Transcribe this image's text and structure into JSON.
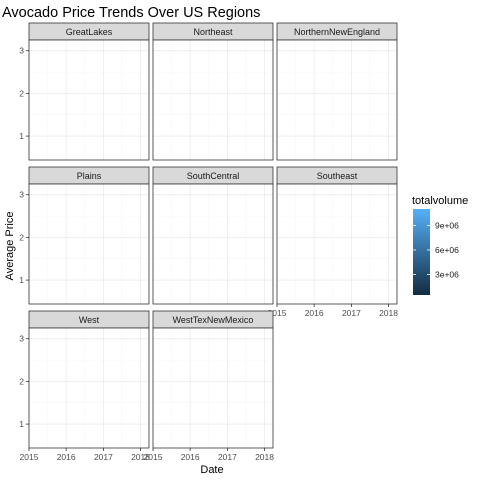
{
  "chart_data": {
    "type": "line",
    "title": "Avocado Price Trends Over US Regions",
    "xlabel": "Date",
    "ylabel": "Average Price",
    "x_ticks": [
      "2015",
      "2016",
      "2017",
      "2018"
    ],
    "y_ticks": [
      1,
      2,
      3
    ],
    "xlim": [
      "2015-01-01",
      "2018-03-25"
    ],
    "ylim": [
      0.44,
      3.25
    ],
    "facets": [
      "GreatLakes",
      "Northeast",
      "NorthernNewEngland",
      "Plains",
      "SouthCentral",
      "Southeast",
      "West",
      "WestTexNewMexico"
    ],
    "facet_columns": 3,
    "series": [],
    "legend": {
      "title": "totalvolume",
      "position": "right",
      "breaks": [
        "9e+06",
        "6e+06",
        "3e+06"
      ],
      "break_values": [
        9000000,
        6000000,
        3000000
      ],
      "range": [
        500000,
        11000000
      ],
      "color_low": "#132b43",
      "color_high": "#56b1f7"
    },
    "grid": true,
    "theme": "bw"
  }
}
